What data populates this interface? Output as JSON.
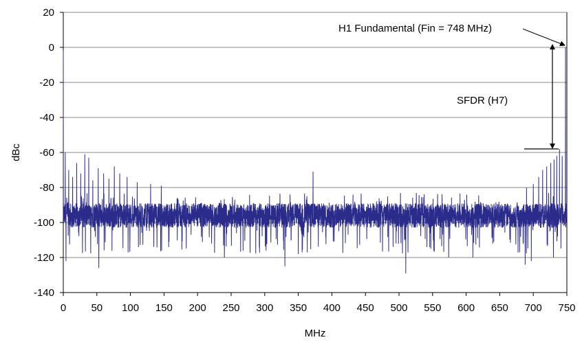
{
  "chart_data": {
    "type": "line",
    "title": "",
    "xlabel": "MHz",
    "ylabel": "dBc",
    "xlim": [
      0,
      750
    ],
    "ylim": [
      -140,
      20
    ],
    "xticks": [
      "0",
      "50",
      "100",
      "150",
      "200",
      "250",
      "300",
      "350",
      "400",
      "450",
      "500",
      "550",
      "600",
      "650",
      "700",
      "750"
    ],
    "yticks": [
      "20",
      "0",
      "-20",
      "-40",
      "-60",
      "-80",
      "-100",
      "-120",
      "-140"
    ],
    "grid": "horizontal",
    "series_color": "#2b2b8c",
    "noise_floor_dbc": -96,
    "spurs": [
      {
        "x": 0,
        "y": -2
      },
      {
        "x": 3,
        "y": -60
      },
      {
        "x": 8,
        "y": -70
      },
      {
        "x": 14,
        "y": -74
      },
      {
        "x": 20,
        "y": -66
      },
      {
        "x": 26,
        "y": -72
      },
      {
        "x": 32,
        "y": -61
      },
      {
        "x": 38,
        "y": -63
      },
      {
        "x": 44,
        "y": -76
      },
      {
        "x": 52,
        "y": -69
      },
      {
        "x": 60,
        "y": -72
      },
      {
        "x": 68,
        "y": -75
      },
      {
        "x": 76,
        "y": -68
      },
      {
        "x": 84,
        "y": -72
      },
      {
        "x": 95,
        "y": -74
      },
      {
        "x": 110,
        "y": -77
      },
      {
        "x": 130,
        "y": -78
      },
      {
        "x": 146,
        "y": -79
      },
      {
        "x": 372,
        "y": -71
      },
      {
        "x": 690,
        "y": -80
      },
      {
        "x": 700,
        "y": -78
      },
      {
        "x": 708,
        "y": -74
      },
      {
        "x": 714,
        "y": -70
      },
      {
        "x": 720,
        "y": -68
      },
      {
        "x": 726,
        "y": -66
      },
      {
        "x": 731,
        "y": -64
      },
      {
        "x": 735,
        "y": -62
      },
      {
        "x": 739,
        "y": -58
      },
      {
        "x": 743,
        "y": -62
      },
      {
        "x": 748,
        "y": 0
      }
    ],
    "deep_dips": [
      {
        "x": 4,
        "y": -122
      },
      {
        "x": 53,
        "y": -126
      },
      {
        "x": 240,
        "y": -120
      },
      {
        "x": 330,
        "y": -125
      },
      {
        "x": 350,
        "y": -118
      },
      {
        "x": 510,
        "y": -129
      },
      {
        "x": 574,
        "y": -120
      },
      {
        "x": 610,
        "y": -120
      },
      {
        "x": 688,
        "y": -124
      },
      {
        "x": 697,
        "y": -122
      },
      {
        "x": 730,
        "y": -120
      },
      {
        "x": 748,
        "y": -113
      }
    ],
    "annotations": {
      "fundamental_label": "H1 Fundamental (Fin = 748 MHz)",
      "sfdr_label": "SFDR (H7)",
      "fundamental_x": 748,
      "fundamental_y": 0,
      "sfdr_top_y": 0,
      "sfdr_bottom_y": -58
    }
  }
}
